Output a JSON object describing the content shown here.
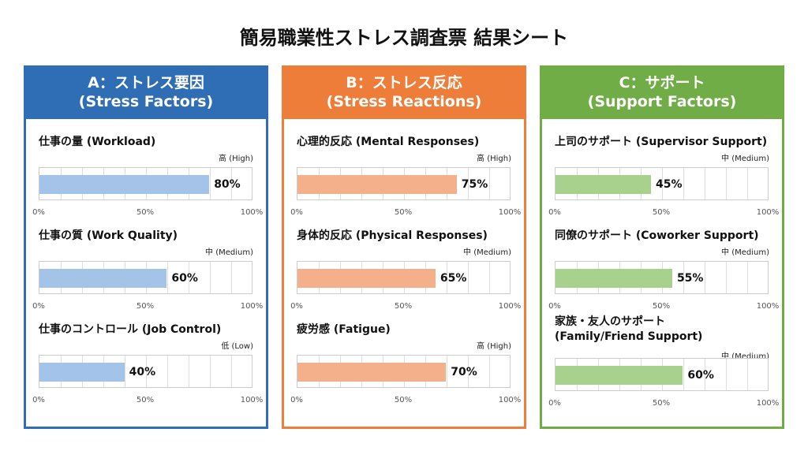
{
  "title": "簡易職業性ストレス調査票 結果シート",
  "chart_data": [
    {
      "type": "bar",
      "orientation": "horizontal",
      "heading": "A：ストレス要因",
      "subheading": "(Stress Factors)",
      "header_color": "#2f6db5",
      "bar_color": "#a3c3e8",
      "xlim": [
        0,
        100
      ],
      "ticks": [
        "0%",
        "50%",
        "100%"
      ],
      "items": [
        {
          "label": "仕事の量 (Workload)",
          "level": "高 (High)",
          "value": 80,
          "value_label": "80%"
        },
        {
          "label": "仕事の質 (Work Quality)",
          "level": "中 (Medium)",
          "value": 60,
          "value_label": "60%"
        },
        {
          "label": "仕事のコントロール (Job Control)",
          "level": "低 (Low)",
          "value": 40,
          "value_label": "40%"
        }
      ]
    },
    {
      "type": "bar",
      "orientation": "horizontal",
      "heading": "B：ストレス反応",
      "subheading": "(Stress Reactions)",
      "header_color": "#ee7d3a",
      "bar_color": "#f4b08a",
      "xlim": [
        0,
        100
      ],
      "ticks": [
        "0%",
        "50%",
        "100%"
      ],
      "items": [
        {
          "label": "心理的反応 (Mental Responses)",
          "level": "高 (High)",
          "value": 75,
          "value_label": "75%"
        },
        {
          "label": "身体的反応 (Physical Responses)",
          "level": "中 (Medium)",
          "value": 65,
          "value_label": "65%"
        },
        {
          "label": "疲労感 (Fatigue)",
          "level": "高 (High)",
          "value": 70,
          "value_label": "70%"
        }
      ]
    },
    {
      "type": "bar",
      "orientation": "horizontal",
      "heading": "C：サポート",
      "subheading": "(Support Factors)",
      "header_color": "#70ad47",
      "bar_color": "#a9d18e",
      "xlim": [
        0,
        100
      ],
      "ticks": [
        "0%",
        "50%",
        "100%"
      ],
      "items": [
        {
          "label": "上司のサポート (Supervisor Support)",
          "level": "中 (Medium)",
          "value": 45,
          "value_label": "45%"
        },
        {
          "label": "同僚のサポート (Coworker Support)",
          "level": "中 (Medium)",
          "value": 55,
          "value_label": "55%"
        },
        {
          "label": "家族・友人のサポート\n(Family/Friend Support)",
          "level": "中 (Medium)",
          "value": 60,
          "value_label": "60%"
        }
      ]
    }
  ]
}
